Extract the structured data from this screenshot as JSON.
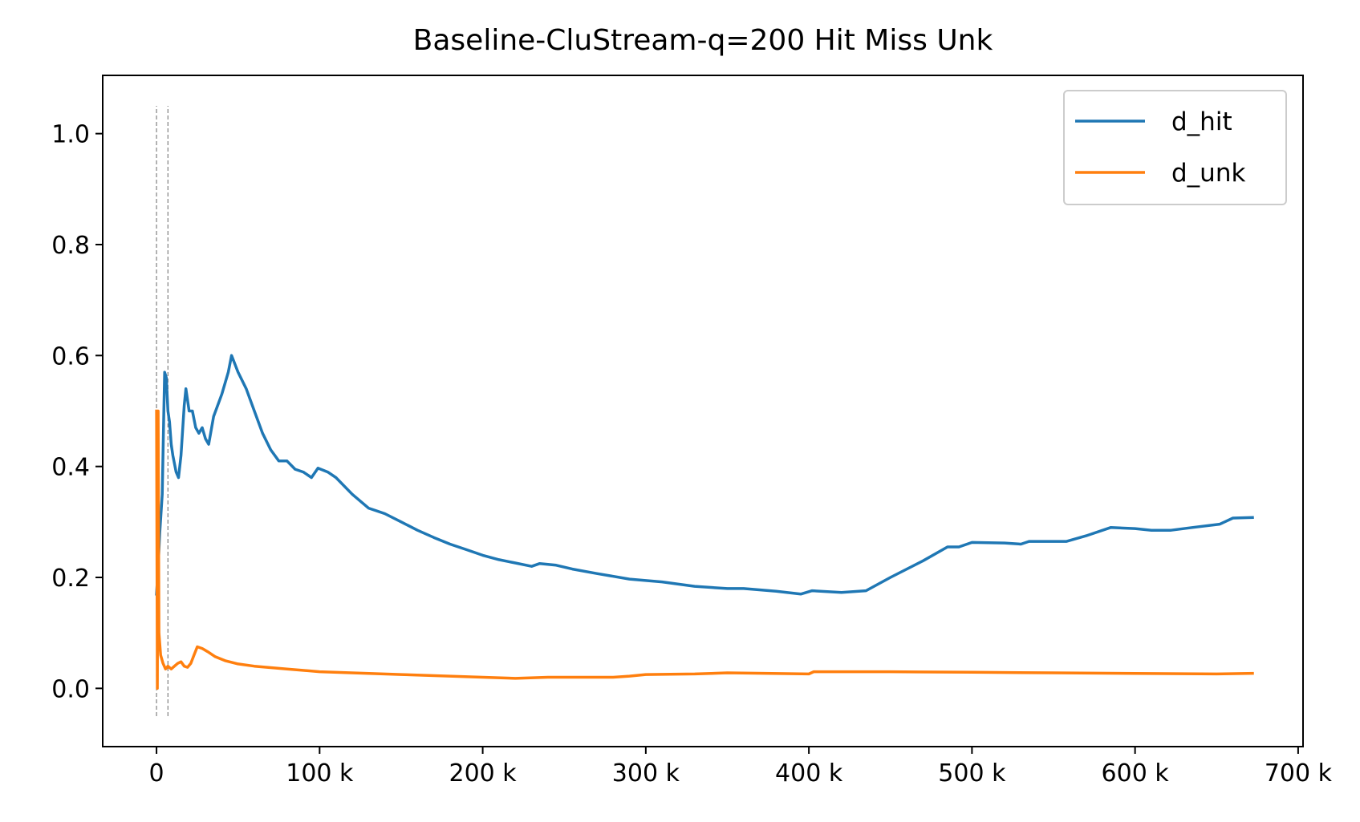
{
  "chart_data": {
    "type": "line",
    "title": "Baseline-CluStream-q=200 Hit Miss Unk",
    "xlabel": "",
    "ylabel": "",
    "xlim": [
      -33000,
      703000
    ],
    "ylim": [
      -0.105,
      1.105
    ],
    "x_ticks": [
      0,
      100000,
      200000,
      300000,
      400000,
      500000,
      600000,
      700000
    ],
    "x_tick_labels": [
      "0",
      "100 k",
      "200 k",
      "300 k",
      "400 k",
      "500 k",
      "600 k",
      "700 k"
    ],
    "y_ticks": [
      0.0,
      0.2,
      0.4,
      0.6,
      0.8,
      1.0
    ],
    "y_tick_labels": [
      "0.0",
      "0.2",
      "0.4",
      "0.6",
      "0.8",
      "1.0"
    ],
    "grid": false,
    "legend_position": "top-right",
    "vertical_markers": [
      {
        "x": 0,
        "y_range": [
          -0.05,
          1.05
        ],
        "style": "dashed",
        "color": "#808080"
      },
      {
        "x": 7000,
        "y_range": [
          -0.05,
          1.05
        ],
        "style": "dashed",
        "color": "#808080"
      }
    ],
    "series": [
      {
        "name": "d_hit",
        "color": "#1f77b4",
        "points": [
          [
            0,
            0.17
          ],
          [
            1000,
            0.22
          ],
          [
            2000,
            0.28
          ],
          [
            3500,
            0.35
          ],
          [
            4500,
            0.5
          ],
          [
            5000,
            0.57
          ],
          [
            6000,
            0.56
          ],
          [
            7000,
            0.5
          ],
          [
            8000,
            0.48
          ],
          [
            9000,
            0.44
          ],
          [
            10000,
            0.42
          ],
          [
            12000,
            0.39
          ],
          [
            13500,
            0.38
          ],
          [
            15000,
            0.42
          ],
          [
            17000,
            0.51
          ],
          [
            18000,
            0.54
          ],
          [
            20000,
            0.5
          ],
          [
            22000,
            0.5
          ],
          [
            24000,
            0.47
          ],
          [
            26000,
            0.46
          ],
          [
            28000,
            0.47
          ],
          [
            30000,
            0.45
          ],
          [
            32000,
            0.44
          ],
          [
            35000,
            0.49
          ],
          [
            40000,
            0.53
          ],
          [
            44000,
            0.57
          ],
          [
            46000,
            0.6
          ],
          [
            50000,
            0.57
          ],
          [
            55000,
            0.54
          ],
          [
            60000,
            0.5
          ],
          [
            65000,
            0.46
          ],
          [
            70000,
            0.43
          ],
          [
            75000,
            0.41
          ],
          [
            80000,
            0.41
          ],
          [
            85000,
            0.395
          ],
          [
            90000,
            0.39
          ],
          [
            95000,
            0.38
          ],
          [
            99000,
            0.397
          ],
          [
            105000,
            0.39
          ],
          [
            110000,
            0.38
          ],
          [
            120000,
            0.35
          ],
          [
            130000,
            0.325
          ],
          [
            140000,
            0.315
          ],
          [
            150000,
            0.3
          ],
          [
            160000,
            0.285
          ],
          [
            170000,
            0.272
          ],
          [
            180000,
            0.26
          ],
          [
            190000,
            0.25
          ],
          [
            200000,
            0.24
          ],
          [
            210000,
            0.232
          ],
          [
            220000,
            0.226
          ],
          [
            230000,
            0.22
          ],
          [
            235000,
            0.225
          ],
          [
            245000,
            0.222
          ],
          [
            255000,
            0.215
          ],
          [
            270000,
            0.207
          ],
          [
            290000,
            0.197
          ],
          [
            310000,
            0.192
          ],
          [
            330000,
            0.184
          ],
          [
            350000,
            0.18
          ],
          [
            360000,
            0.18
          ],
          [
            380000,
            0.175
          ],
          [
            395000,
            0.17
          ],
          [
            402000,
            0.176
          ],
          [
            420000,
            0.173
          ],
          [
            435000,
            0.176
          ],
          [
            450000,
            0.2
          ],
          [
            470000,
            0.23
          ],
          [
            485000,
            0.255
          ],
          [
            492000,
            0.255
          ],
          [
            500000,
            0.263
          ],
          [
            520000,
            0.262
          ],
          [
            530000,
            0.26
          ],
          [
            535000,
            0.265
          ],
          [
            558000,
            0.265
          ],
          [
            570000,
            0.275
          ],
          [
            585000,
            0.29
          ],
          [
            600000,
            0.288
          ],
          [
            610000,
            0.285
          ],
          [
            622000,
            0.285
          ],
          [
            635000,
            0.29
          ],
          [
            652000,
            0.296
          ],
          [
            660000,
            0.307
          ],
          [
            672000,
            0.308
          ]
        ]
      },
      {
        "name": "d_unk",
        "color": "#ff7f0e",
        "points": [
          [
            0,
            0.5
          ],
          [
            500,
            0.0
          ],
          [
            1000,
            0.5
          ],
          [
            1500,
            0.1
          ],
          [
            2500,
            0.06
          ],
          [
            4000,
            0.045
          ],
          [
            5500,
            0.035
          ],
          [
            7000,
            0.04
          ],
          [
            9000,
            0.035
          ],
          [
            11000,
            0.04
          ],
          [
            13000,
            0.045
          ],
          [
            15000,
            0.048
          ],
          [
            17000,
            0.04
          ],
          [
            19000,
            0.038
          ],
          [
            21000,
            0.045
          ],
          [
            23000,
            0.06
          ],
          [
            25000,
            0.075
          ],
          [
            28000,
            0.072
          ],
          [
            32000,
            0.065
          ],
          [
            36000,
            0.057
          ],
          [
            42000,
            0.05
          ],
          [
            50000,
            0.044
          ],
          [
            60000,
            0.04
          ],
          [
            80000,
            0.035
          ],
          [
            100000,
            0.03
          ],
          [
            150000,
            0.025
          ],
          [
            200000,
            0.02
          ],
          [
            220000,
            0.018
          ],
          [
            240000,
            0.02
          ],
          [
            280000,
            0.02
          ],
          [
            290000,
            0.022
          ],
          [
            300000,
            0.025
          ],
          [
            330000,
            0.026
          ],
          [
            350000,
            0.028
          ],
          [
            400000,
            0.026
          ],
          [
            403000,
            0.03
          ],
          [
            450000,
            0.03
          ],
          [
            500000,
            0.029
          ],
          [
            550000,
            0.028
          ],
          [
            600000,
            0.027
          ],
          [
            650000,
            0.026
          ],
          [
            672000,
            0.027
          ]
        ]
      }
    ]
  }
}
